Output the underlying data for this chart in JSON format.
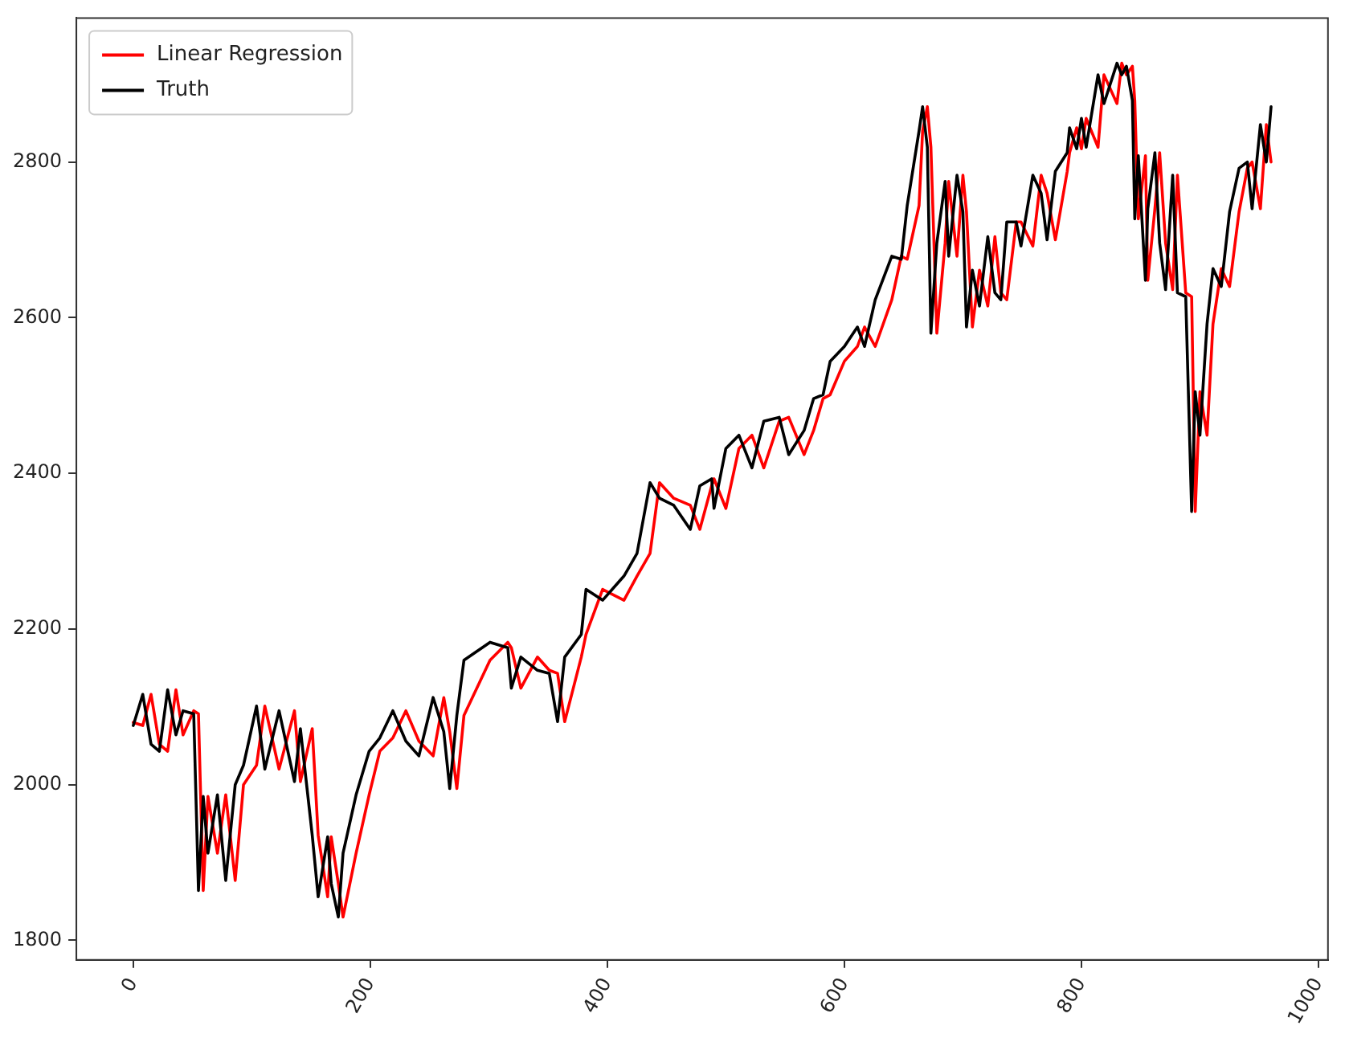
{
  "chart_data": {
    "type": "line",
    "legend": "top left",
    "marker": "none",
    "line_style": "solid",
    "x": [
      0,
      8,
      15,
      22,
      29,
      36,
      42,
      51,
      55,
      59,
      63,
      71,
      78,
      86,
      93,
      104,
      111,
      123,
      136,
      141,
      151,
      156,
      164,
      167,
      173,
      177,
      188,
      199,
      208,
      219,
      230,
      241,
      253,
      262,
      267,
      273,
      279,
      301,
      316,
      319,
      327,
      341,
      351,
      358,
      364,
      378,
      382,
      396,
      414,
      425,
      436,
      444,
      456,
      470,
      478,
      488,
      490,
      500,
      511,
      522,
      532,
      545,
      553,
      566,
      574,
      582,
      588,
      600,
      611,
      617,
      626,
      640,
      648,
      653,
      663,
      666,
      670,
      673,
      678,
      685,
      688,
      695,
      700,
      703,
      708,
      714,
      721,
      727,
      732,
      737,
      745,
      749,
      759,
      766,
      771,
      778,
      788,
      790,
      796,
      800,
      804,
      814,
      819,
      830,
      834,
      838,
      843,
      845,
      848,
      854,
      856,
      862,
      866,
      871,
      877,
      881,
      888,
      893,
      896,
      900,
      906,
      911,
      918,
      925,
      933,
      940,
      944,
      951,
      956,
      960
    ],
    "xlim": [
      -48,
      1008
    ],
    "xticks": [
      0,
      200,
      400,
      600,
      800,
      1000
    ],
    "ylim": [
      1775,
      2985
    ],
    "yticks": [
      1800,
      2000,
      2200,
      2400,
      2600,
      2800
    ],
    "series": [
      {
        "name": "Linear Regression",
        "color": "#ff0000",
        "values": [
          2080,
          2076,
          2116,
          2052,
          2043,
          2122,
          2064,
          2095,
          2091,
          1864,
          1985,
          1912,
          1987,
          1877,
          2000,
          2025,
          2101,
          2020,
          2095,
          2004,
          2072,
          1935,
          1856,
          1933,
          1873,
          1830,
          1912,
          1987,
          2043,
          2060,
          2095,
          2056,
          2037,
          2112,
          2068,
          1995,
          2089,
          2160,
          2183,
          2176,
          2124,
          2164,
          2147,
          2143,
          2081,
          2164,
          2193,
          2251,
          2237,
          2268,
          2297,
          2388,
          2368,
          2359,
          2328,
          2384,
          2393,
          2355,
          2432,
          2449,
          2407,
          2467,
          2472,
          2424,
          2455,
          2496,
          2501,
          2544,
          2563,
          2588,
          2563,
          2623,
          2679,
          2675,
          2744,
          2840,
          2871,
          2819,
          2580,
          2696,
          2775,
          2679,
          2783,
          2736,
          2588,
          2661,
          2615,
          2704,
          2632,
          2623,
          2723,
          2723,
          2692,
          2783,
          2760,
          2700,
          2788,
          2812,
          2844,
          2817,
          2856,
          2819,
          2912,
          2875,
          2927,
          2912,
          2923,
          2879,
          2727,
          2808,
          2648,
          2740,
          2812,
          2696,
          2636,
          2783,
          2632,
          2627,
          2351,
          2505,
          2449,
          2592,
          2663,
          2640,
          2736,
          2792,
          2800,
          2740,
          2848,
          2800
        ]
      },
      {
        "name": "Truth",
        "color": "#000000",
        "values": [
          2076,
          2116,
          2052,
          2043,
          2122,
          2064,
          2095,
          2091,
          1864,
          1985,
          1912,
          1987,
          1877,
          2000,
          2025,
          2101,
          2020,
          2095,
          2004,
          2072,
          1935,
          1856,
          1933,
          1873,
          1830,
          1912,
          1987,
          2043,
          2060,
          2095,
          2056,
          2037,
          2112,
          2068,
          1995,
          2089,
          2160,
          2183,
          2176,
          2124,
          2164,
          2147,
          2143,
          2081,
          2164,
          2193,
          2251,
          2237,
          2268,
          2297,
          2388,
          2368,
          2359,
          2328,
          2384,
          2393,
          2355,
          2432,
          2449,
          2407,
          2467,
          2472,
          2424,
          2455,
          2496,
          2501,
          2544,
          2563,
          2588,
          2563,
          2623,
          2679,
          2675,
          2744,
          2840,
          2871,
          2819,
          2580,
          2696,
          2775,
          2679,
          2783,
          2736,
          2588,
          2661,
          2615,
          2704,
          2632,
          2623,
          2723,
          2723,
          2692,
          2783,
          2760,
          2700,
          2788,
          2812,
          2844,
          2817,
          2856,
          2819,
          2912,
          2875,
          2927,
          2912,
          2923,
          2879,
          2727,
          2808,
          2648,
          2740,
          2812,
          2696,
          2636,
          2783,
          2632,
          2627,
          2351,
          2505,
          2449,
          2592,
          2663,
          2640,
          2736,
          2792,
          2800,
          2740,
          2848,
          2800,
          2871
        ]
      }
    ]
  }
}
